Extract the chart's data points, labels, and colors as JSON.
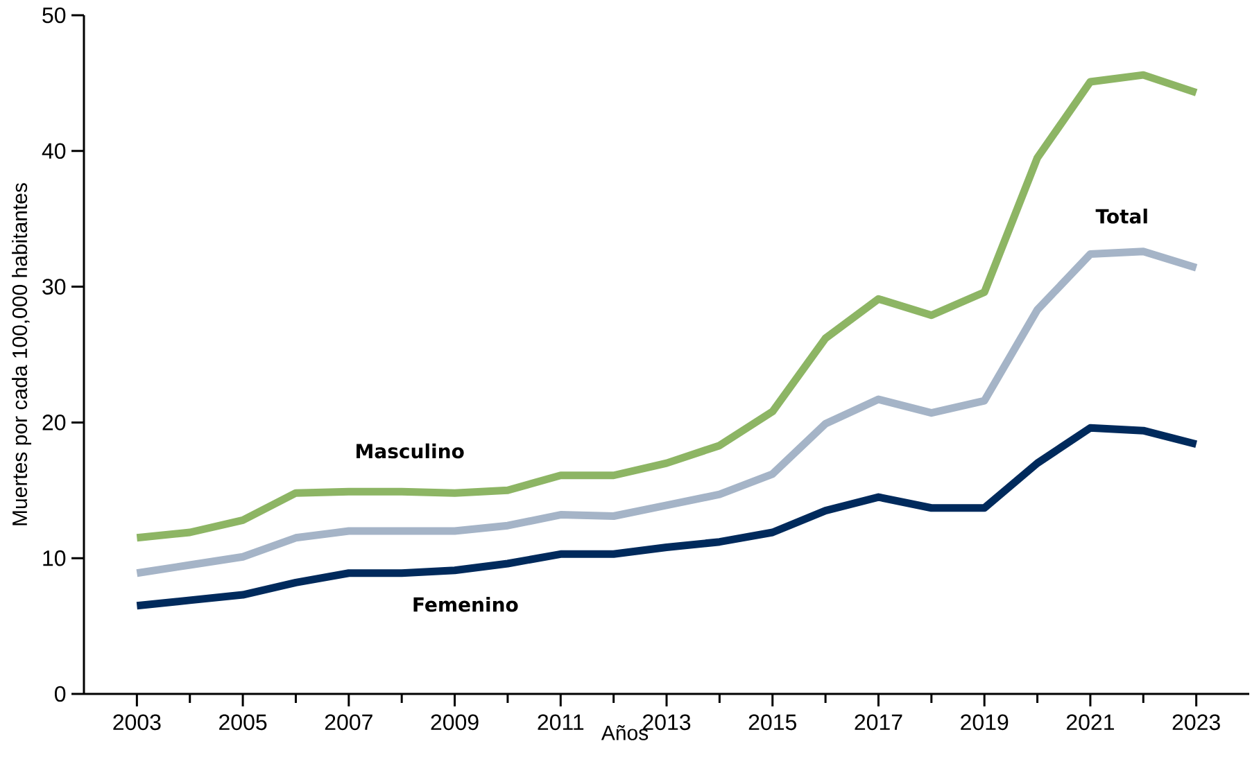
{
  "chart_data": {
    "type": "line",
    "xlabel": "Años",
    "ylabel": "Muertes por cada 100,000 habitantes",
    "x": [
      2003,
      2004,
      2005,
      2006,
      2007,
      2008,
      2009,
      2010,
      2011,
      2012,
      2013,
      2014,
      2015,
      2016,
      2017,
      2018,
      2019,
      2020,
      2021,
      2022,
      2023
    ],
    "series": [
      {
        "name": "Masculino",
        "color": "#8db564",
        "values": [
          11.5,
          11.9,
          12.8,
          14.8,
          14.9,
          14.9,
          14.8,
          15.0,
          16.1,
          16.1,
          17.0,
          18.3,
          20.8,
          26.2,
          29.1,
          27.9,
          29.6,
          39.5,
          45.1,
          45.6,
          44.3
        ]
      },
      {
        "name": "Total",
        "color": "#a5b4c7",
        "values": [
          8.9,
          9.5,
          10.1,
          11.5,
          12.0,
          12.0,
          12.0,
          12.4,
          13.2,
          13.1,
          13.9,
          14.7,
          16.2,
          19.9,
          21.7,
          20.7,
          21.6,
          28.3,
          32.4,
          32.6,
          31.4
        ]
      },
      {
        "name": "Femenino",
        "color": "#002a5c",
        "values": [
          6.5,
          6.9,
          7.3,
          8.2,
          8.9,
          8.9,
          9.1,
          9.6,
          10.3,
          10.3,
          10.8,
          11.2,
          11.9,
          13.5,
          14.5,
          13.7,
          13.7,
          17.0,
          19.6,
          19.4,
          18.4
        ]
      }
    ],
    "xlim": [
      2002,
      2024
    ],
    "ylim": [
      0,
      50
    ],
    "xticks": [
      2003,
      2005,
      2007,
      2009,
      2011,
      2013,
      2015,
      2017,
      2019,
      2021,
      2023
    ],
    "yticks": [
      0,
      10,
      20,
      30,
      40,
      50
    ],
    "grid": false,
    "legend": false,
    "marker": "none",
    "line_style": "solid"
  }
}
